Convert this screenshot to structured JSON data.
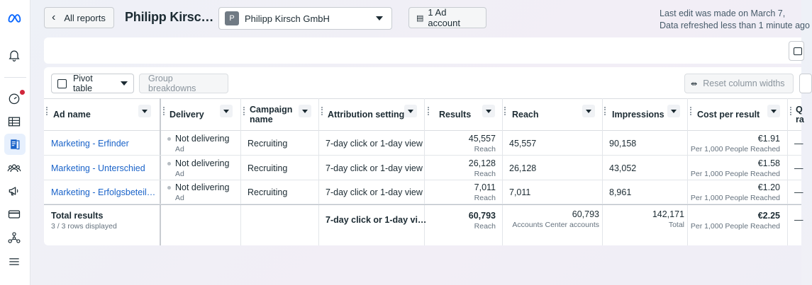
{
  "nav": {
    "icons": [
      "meta-logo-icon",
      "notifications-icon",
      "dashboard-icon",
      "table-icon",
      "reports-icon",
      "audiences-icon",
      "campaigns-icon",
      "billing-icon",
      "integrations-icon",
      "menu-icon"
    ]
  },
  "header": {
    "back_label": "All reports",
    "title": "Philipp Kirsc…",
    "account_badge": "P",
    "account_name": "Philipp Kirsch GmbH",
    "ad_accounts": "1 Ad account",
    "last_edit": "Last edit was made on March 7,",
    "refreshed": "Data refreshed less than 1 minute ago"
  },
  "toolbar": {
    "pivot": "Pivot table",
    "group": "Group breakdowns",
    "reset": "Reset column widths"
  },
  "columns": [
    "Ad name",
    "Delivery",
    "Campaign",
    "name",
    "Attribution setting",
    "Results",
    "Reach",
    "Impressions",
    "Cost per result",
    "Q",
    "ra"
  ],
  "rows": [
    {
      "ad": "Marketing - Erfinder",
      "delivery": "Not delivering",
      "delivery_sub": "Ad",
      "campaign": "Recruiting",
      "attribution": "7-day click or 1-day view",
      "results": "45,557",
      "results_sub": "Reach",
      "reach": "45,557",
      "impressions": "90,158",
      "cost": "€1.91",
      "cost_sub": "Per 1,000 People Reached",
      "q": "—"
    },
    {
      "ad": "Marketing - Unterschied",
      "delivery": "Not delivering",
      "delivery_sub": "Ad",
      "campaign": "Recruiting",
      "attribution": "7-day click or 1-day view",
      "results": "26,128",
      "results_sub": "Reach",
      "reach": "26,128",
      "impressions": "43,052",
      "cost": "€1.58",
      "cost_sub": "Per 1,000 People Reached",
      "q": "—"
    },
    {
      "ad": "Marketing - Erfolgsbeteil…",
      "delivery": "Not delivering",
      "delivery_sub": "Ad",
      "campaign": "Recruiting",
      "attribution": "7-day click or 1-day view",
      "results": "7,011",
      "results_sub": "Reach",
      "reach": "7,011",
      "impressions": "8,961",
      "cost": "€1.20",
      "cost_sub": "Per 1,000 People Reached",
      "q": "—"
    }
  ],
  "totals": {
    "label": "Total results",
    "sub": "3 / 3 rows displayed",
    "attribution": "7-day click or 1-day vi…",
    "results": "60,793",
    "results_sub": "Reach",
    "reach": "60,793",
    "reach_sub": "Accounts Center accounts",
    "impressions": "142,171",
    "impressions_sub": "Total",
    "cost": "€2.25",
    "cost_sub": "Per 1,000 People Reached",
    "q": "—"
  },
  "colors": {
    "accent": "#1a63c9",
    "meta_blue": "#0866ff",
    "alert": "#d0263b"
  }
}
